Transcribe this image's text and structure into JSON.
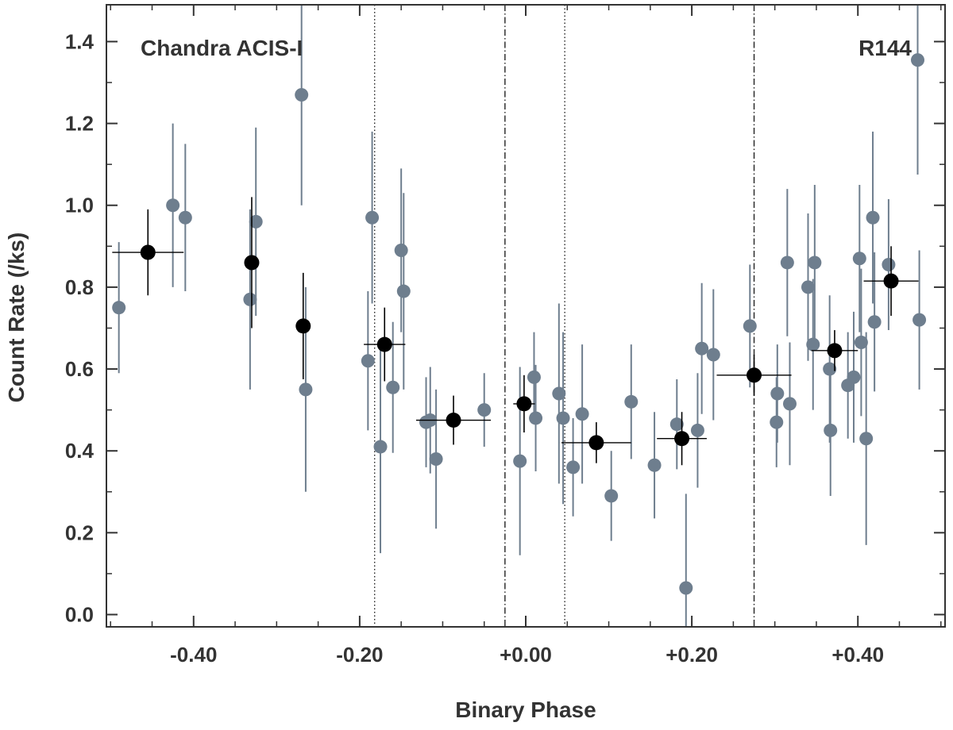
{
  "chart_data": {
    "type": "scatter",
    "xlabel": "Binary Phase",
    "ylabel": "Count Rate (/ks)",
    "xlim": [
      -0.505,
      0.505
    ],
    "ylim": [
      -0.03,
      1.49
    ],
    "xticks": [
      {
        "value": -0.4,
        "label": "-0.40"
      },
      {
        "value": -0.2,
        "label": "-0.20"
      },
      {
        "value": 0.0,
        "label": "+0.00"
      },
      {
        "value": 0.2,
        "label": "+0.20"
      },
      {
        "value": 0.4,
        "label": "+0.40"
      }
    ],
    "yticks": [
      {
        "value": 0.0,
        "label": "0.0"
      },
      {
        "value": 0.2,
        "label": "0.2"
      },
      {
        "value": 0.4,
        "label": "0.4"
      },
      {
        "value": 0.6,
        "label": "0.6"
      },
      {
        "value": 0.8,
        "label": "0.8"
      },
      {
        "value": 1.0,
        "label": "1.0"
      },
      {
        "value": 1.2,
        "label": "1.2"
      },
      {
        "value": 1.4,
        "label": "1.4"
      }
    ],
    "annotations": {
      "left": "Chandra ACIS-I",
      "right": "R144"
    },
    "vlines": [
      {
        "x": -0.182,
        "style": "dotted"
      },
      {
        "x": 0.047,
        "style": "dotted"
      },
      {
        "x": -0.025,
        "style": "dashdot"
      },
      {
        "x": 0.275,
        "style": "dashdot"
      }
    ],
    "series": [
      {
        "name": "individual observations",
        "color": "#6e7e8e",
        "points": [
          {
            "x": -0.49,
            "y": 0.75,
            "err": 0.16
          },
          {
            "x": -0.425,
            "y": 1.0,
            "err": 0.2
          },
          {
            "x": -0.41,
            "y": 0.97,
            "err": 0.18
          },
          {
            "x": -0.332,
            "y": 0.77,
            "err": 0.22
          },
          {
            "x": -0.325,
            "y": 0.96,
            "err": 0.23
          },
          {
            "x": -0.27,
            "y": 1.27,
            "err": 0.27
          },
          {
            "x": -0.265,
            "y": 0.55,
            "err": 0.25
          },
          {
            "x": -0.19,
            "y": 0.62,
            "err": 0.17
          },
          {
            "x": -0.185,
            "y": 0.97,
            "err": 0.21
          },
          {
            "x": -0.175,
            "y": 0.41,
            "err": 0.26
          },
          {
            "x": -0.16,
            "y": 0.555,
            "err": 0.16
          },
          {
            "x": -0.15,
            "y": 0.89,
            "err": 0.2
          },
          {
            "x": -0.147,
            "y": 0.79,
            "err": 0.24
          },
          {
            "x": -0.12,
            "y": 0.47,
            "err": 0.11
          },
          {
            "x": -0.115,
            "y": 0.475,
            "err": 0.13
          },
          {
            "x": -0.108,
            "y": 0.38,
            "err": 0.17
          },
          {
            "x": -0.05,
            "y": 0.5,
            "err": 0.09
          },
          {
            "x": -0.007,
            "y": 0.375,
            "err": 0.23
          },
          {
            "x": 0.01,
            "y": 0.58,
            "err": 0.11
          },
          {
            "x": 0.012,
            "y": 0.48,
            "err": 0.13
          },
          {
            "x": 0.04,
            "y": 0.54,
            "err": 0.22
          },
          {
            "x": 0.045,
            "y": 0.48,
            "err": 0.21
          },
          {
            "x": 0.057,
            "y": 0.36,
            "err": 0.12
          },
          {
            "x": 0.068,
            "y": 0.49,
            "err": 0.17
          },
          {
            "x": 0.103,
            "y": 0.29,
            "err": 0.11
          },
          {
            "x": 0.127,
            "y": 0.52,
            "err": 0.14
          },
          {
            "x": 0.155,
            "y": 0.365,
            "err": 0.13
          },
          {
            "x": 0.182,
            "y": 0.465,
            "err": 0.11
          },
          {
            "x": 0.193,
            "y": 0.065,
            "err": 0.23
          },
          {
            "x": 0.207,
            "y": 0.45,
            "err": 0.14
          },
          {
            "x": 0.212,
            "y": 0.65,
            "err": 0.16
          },
          {
            "x": 0.226,
            "y": 0.635,
            "err": 0.16
          },
          {
            "x": 0.27,
            "y": 0.705,
            "err": 0.15
          },
          {
            "x": 0.302,
            "y": 0.47,
            "err": 0.11
          },
          {
            "x": 0.303,
            "y": 0.54,
            "err": 0.12
          },
          {
            "x": 0.315,
            "y": 0.86,
            "err": 0.18
          },
          {
            "x": 0.318,
            "y": 0.515,
            "err": 0.15
          },
          {
            "x": 0.34,
            "y": 0.8,
            "err": 0.18
          },
          {
            "x": 0.346,
            "y": 0.66,
            "err": 0.16
          },
          {
            "x": 0.348,
            "y": 0.86,
            "err": 0.19
          },
          {
            "x": 0.366,
            "y": 0.6,
            "err": 0.18
          },
          {
            "x": 0.367,
            "y": 0.45,
            "err": 0.16
          },
          {
            "x": 0.388,
            "y": 0.56,
            "err": 0.13
          },
          {
            "x": 0.395,
            "y": 0.58,
            "err": 0.16
          },
          {
            "x": 0.402,
            "y": 0.87,
            "err": 0.18
          },
          {
            "x": 0.404,
            "y": 0.665,
            "err": 0.18
          },
          {
            "x": 0.41,
            "y": 0.43,
            "err": 0.26
          },
          {
            "x": 0.418,
            "y": 0.97,
            "err": 0.21
          },
          {
            "x": 0.42,
            "y": 0.715,
            "err": 0.17
          },
          {
            "x": 0.437,
            "y": 0.855,
            "err": 0.16
          },
          {
            "x": 0.472,
            "y": 1.355,
            "err": 0.28
          },
          {
            "x": 0.474,
            "y": 0.72,
            "err": 0.17
          }
        ]
      },
      {
        "name": "phase-binned averages",
        "color": "#000000",
        "points": [
          {
            "x": -0.455,
            "y": 0.885,
            "xerr": 0.043,
            "err": 0.105
          },
          {
            "x": -0.33,
            "y": 0.86,
            "xerr": 0.0,
            "err": 0.16
          },
          {
            "x": -0.268,
            "y": 0.705,
            "xerr": 0.0,
            "err": 0.13
          },
          {
            "x": -0.17,
            "y": 0.66,
            "xerr": 0.025,
            "err": 0.09
          },
          {
            "x": -0.087,
            "y": 0.475,
            "xerr": 0.045,
            "err": 0.06
          },
          {
            "x": -0.002,
            "y": 0.515,
            "xerr": 0.013,
            "err": 0.07
          },
          {
            "x": 0.085,
            "y": 0.42,
            "xerr": 0.042,
            "err": 0.05
          },
          {
            "x": 0.188,
            "y": 0.43,
            "xerr": 0.03,
            "err": 0.065
          },
          {
            "x": 0.275,
            "y": 0.585,
            "xerr": 0.045,
            "err": 0.05
          },
          {
            "x": 0.372,
            "y": 0.645,
            "xerr": 0.028,
            "err": 0.05
          },
          {
            "x": 0.44,
            "y": 0.815,
            "xerr": 0.033,
            "err": 0.085
          }
        ]
      }
    ]
  }
}
